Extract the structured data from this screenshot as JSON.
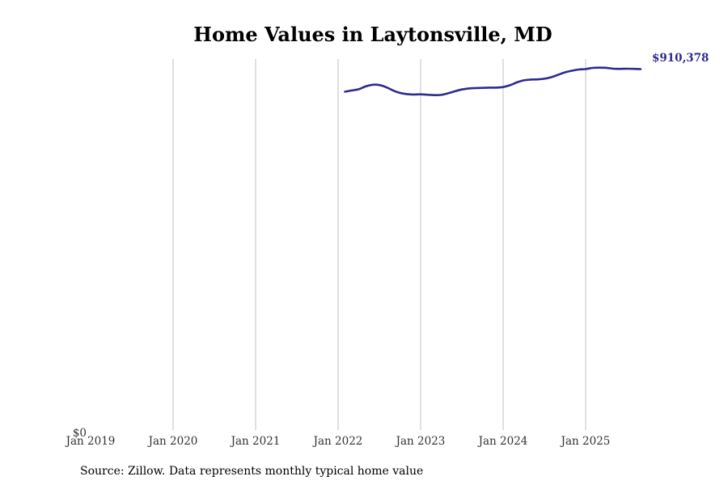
{
  "chart_data": {
    "type": "line",
    "title": "Home Values in Laytonsville, MD",
    "xlabel": "",
    "ylabel": "",
    "x_ticks": [
      "Jan 2019",
      "Jan 2020",
      "Jan 2021",
      "Jan 2022",
      "Jan 2023",
      "Jan 2024",
      "Jan 2025"
    ],
    "y_tick_label": "$0",
    "ylim": [
      0,
      920000
    ],
    "xlim_months": [
      0,
      84
    ],
    "grid": "vertical",
    "line_color": "#2e2a8f",
    "end_value_label": "$910,378",
    "series": [
      {
        "name": "Typical home value",
        "x_months": [
          37,
          38,
          39,
          40,
          41,
          42,
          43,
          44,
          45,
          46,
          47,
          48,
          49,
          50,
          51,
          52,
          53,
          54,
          55,
          56,
          57,
          58,
          59,
          60,
          61,
          62,
          63,
          64,
          65,
          66,
          67,
          68,
          69,
          70,
          71,
          72,
          73,
          74,
          75,
          76,
          77,
          78,
          79,
          80
        ],
        "values": [
          839000,
          842000,
          845000,
          852000,
          856000,
          855500,
          850000,
          842000,
          836000,
          833000,
          832000,
          832500,
          831500,
          830500,
          831000,
          835000,
          840000,
          844500,
          847000,
          848000,
          848500,
          849000,
          849000,
          850500,
          855000,
          862000,
          867000,
          869000,
          869500,
          871000,
          875000,
          881000,
          887000,
          891000,
          894000,
          895000,
          898000,
          898500,
          898200,
          896000,
          895500,
          910378,
          910378,
          910378
        ]
      }
    ]
  },
  "source_note": "Source: Zillow. Data represents monthly typical home value"
}
